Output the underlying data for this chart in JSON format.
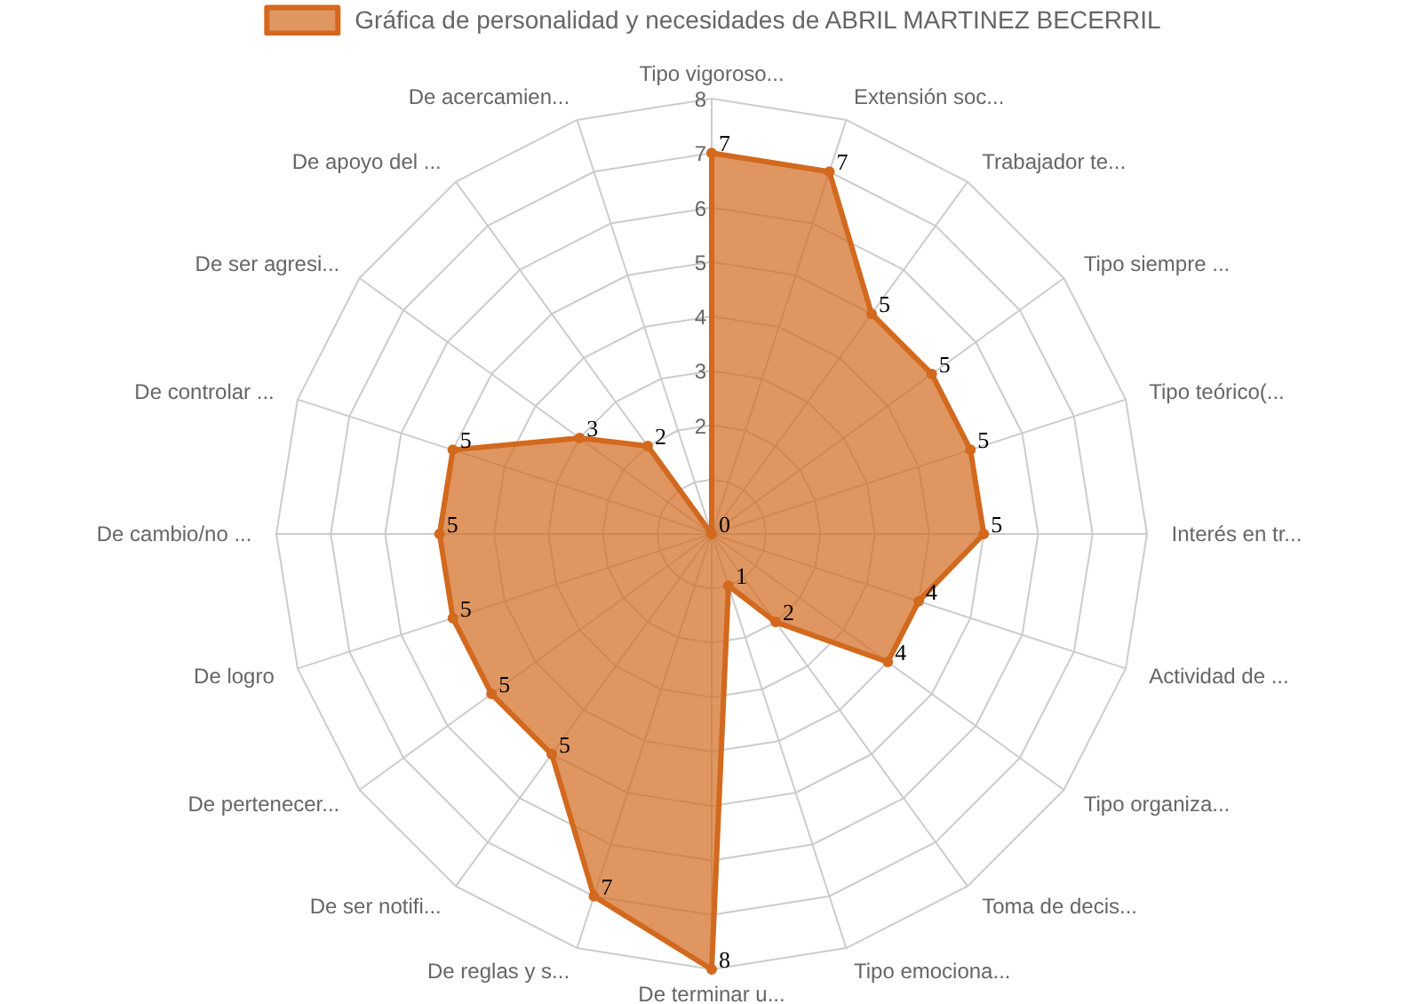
{
  "chart_data": {
    "type": "radar",
    "categories": [
      "Tipo vigoroso...",
      "Extensión soc...",
      "Trabajador te...",
      "Tipo siempre ...",
      "Tipo teórico(...",
      "Interés en tr...",
      "Actividad de ...",
      "Tipo organiza...",
      "Toma de decis...",
      "Tipo emociona...",
      "De terminar u...",
      "De reglas y s...",
      "De ser notifi...",
      "De pertenecer...",
      "De logro",
      "De cambio/no ...",
      "De controlar ...",
      "De ser agresi...",
      "De apoyo del ...",
      "De acercamien..."
    ],
    "series": [
      {
        "name": "Gráfica de personalidad y necesidades de ABRIL MARTINEZ BECERRIL",
        "color": "#d2691e",
        "values": [
          7,
          7,
          5,
          5,
          5,
          5,
          4,
          4,
          2,
          1,
          8,
          7,
          5,
          5,
          5,
          5,
          5,
          3,
          2,
          0
        ]
      }
    ],
    "ylim": [
      0,
      8
    ],
    "yticks": [
      2,
      3,
      4,
      5,
      6,
      7,
      8
    ],
    "data_labels": true,
    "legend": "top",
    "marker": "circle",
    "grid": true
  }
}
